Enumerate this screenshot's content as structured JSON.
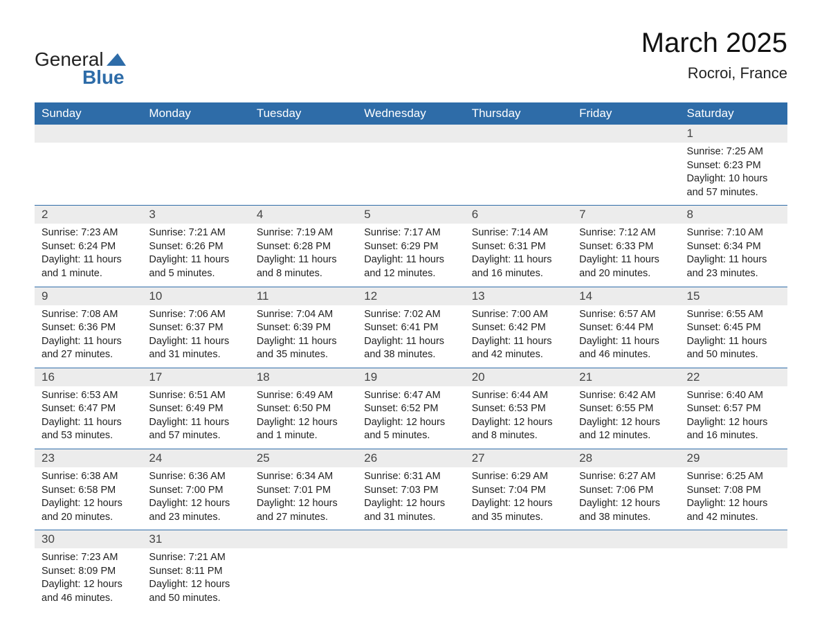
{
  "logo": {
    "text_main": "General",
    "text_sub": "Blue"
  },
  "header": {
    "month_title": "March 2025",
    "location": "Rocroi, France"
  },
  "colors": {
    "header_bg": "#2e6ca8",
    "header_fg": "#ffffff",
    "daynum_bg": "#ececec",
    "row_divider": "#2e6ca8",
    "text": "#222222",
    "page_bg": "#ffffff"
  },
  "calendar": {
    "weekdays": [
      "Sunday",
      "Monday",
      "Tuesday",
      "Wednesday",
      "Thursday",
      "Friday",
      "Saturday"
    ],
    "weeks": [
      [
        null,
        null,
        null,
        null,
        null,
        null,
        {
          "n": "1",
          "sunrise": "Sunrise: 7:25 AM",
          "sunset": "Sunset: 6:23 PM",
          "day1": "Daylight: 10 hours",
          "day2": "and 57 minutes."
        }
      ],
      [
        {
          "n": "2",
          "sunrise": "Sunrise: 7:23 AM",
          "sunset": "Sunset: 6:24 PM",
          "day1": "Daylight: 11 hours",
          "day2": "and 1 minute."
        },
        {
          "n": "3",
          "sunrise": "Sunrise: 7:21 AM",
          "sunset": "Sunset: 6:26 PM",
          "day1": "Daylight: 11 hours",
          "day2": "and 5 minutes."
        },
        {
          "n": "4",
          "sunrise": "Sunrise: 7:19 AM",
          "sunset": "Sunset: 6:28 PM",
          "day1": "Daylight: 11 hours",
          "day2": "and 8 minutes."
        },
        {
          "n": "5",
          "sunrise": "Sunrise: 7:17 AM",
          "sunset": "Sunset: 6:29 PM",
          "day1": "Daylight: 11 hours",
          "day2": "and 12 minutes."
        },
        {
          "n": "6",
          "sunrise": "Sunrise: 7:14 AM",
          "sunset": "Sunset: 6:31 PM",
          "day1": "Daylight: 11 hours",
          "day2": "and 16 minutes."
        },
        {
          "n": "7",
          "sunrise": "Sunrise: 7:12 AM",
          "sunset": "Sunset: 6:33 PM",
          "day1": "Daylight: 11 hours",
          "day2": "and 20 minutes."
        },
        {
          "n": "8",
          "sunrise": "Sunrise: 7:10 AM",
          "sunset": "Sunset: 6:34 PM",
          "day1": "Daylight: 11 hours",
          "day2": "and 23 minutes."
        }
      ],
      [
        {
          "n": "9",
          "sunrise": "Sunrise: 7:08 AM",
          "sunset": "Sunset: 6:36 PM",
          "day1": "Daylight: 11 hours",
          "day2": "and 27 minutes."
        },
        {
          "n": "10",
          "sunrise": "Sunrise: 7:06 AM",
          "sunset": "Sunset: 6:37 PM",
          "day1": "Daylight: 11 hours",
          "day2": "and 31 minutes."
        },
        {
          "n": "11",
          "sunrise": "Sunrise: 7:04 AM",
          "sunset": "Sunset: 6:39 PM",
          "day1": "Daylight: 11 hours",
          "day2": "and 35 minutes."
        },
        {
          "n": "12",
          "sunrise": "Sunrise: 7:02 AM",
          "sunset": "Sunset: 6:41 PM",
          "day1": "Daylight: 11 hours",
          "day2": "and 38 minutes."
        },
        {
          "n": "13",
          "sunrise": "Sunrise: 7:00 AM",
          "sunset": "Sunset: 6:42 PM",
          "day1": "Daylight: 11 hours",
          "day2": "and 42 minutes."
        },
        {
          "n": "14",
          "sunrise": "Sunrise: 6:57 AM",
          "sunset": "Sunset: 6:44 PM",
          "day1": "Daylight: 11 hours",
          "day2": "and 46 minutes."
        },
        {
          "n": "15",
          "sunrise": "Sunrise: 6:55 AM",
          "sunset": "Sunset: 6:45 PM",
          "day1": "Daylight: 11 hours",
          "day2": "and 50 minutes."
        }
      ],
      [
        {
          "n": "16",
          "sunrise": "Sunrise: 6:53 AM",
          "sunset": "Sunset: 6:47 PM",
          "day1": "Daylight: 11 hours",
          "day2": "and 53 minutes."
        },
        {
          "n": "17",
          "sunrise": "Sunrise: 6:51 AM",
          "sunset": "Sunset: 6:49 PM",
          "day1": "Daylight: 11 hours",
          "day2": "and 57 minutes."
        },
        {
          "n": "18",
          "sunrise": "Sunrise: 6:49 AM",
          "sunset": "Sunset: 6:50 PM",
          "day1": "Daylight: 12 hours",
          "day2": "and 1 minute."
        },
        {
          "n": "19",
          "sunrise": "Sunrise: 6:47 AM",
          "sunset": "Sunset: 6:52 PM",
          "day1": "Daylight: 12 hours",
          "day2": "and 5 minutes."
        },
        {
          "n": "20",
          "sunrise": "Sunrise: 6:44 AM",
          "sunset": "Sunset: 6:53 PM",
          "day1": "Daylight: 12 hours",
          "day2": "and 8 minutes."
        },
        {
          "n": "21",
          "sunrise": "Sunrise: 6:42 AM",
          "sunset": "Sunset: 6:55 PM",
          "day1": "Daylight: 12 hours",
          "day2": "and 12 minutes."
        },
        {
          "n": "22",
          "sunrise": "Sunrise: 6:40 AM",
          "sunset": "Sunset: 6:57 PM",
          "day1": "Daylight: 12 hours",
          "day2": "and 16 minutes."
        }
      ],
      [
        {
          "n": "23",
          "sunrise": "Sunrise: 6:38 AM",
          "sunset": "Sunset: 6:58 PM",
          "day1": "Daylight: 12 hours",
          "day2": "and 20 minutes."
        },
        {
          "n": "24",
          "sunrise": "Sunrise: 6:36 AM",
          "sunset": "Sunset: 7:00 PM",
          "day1": "Daylight: 12 hours",
          "day2": "and 23 minutes."
        },
        {
          "n": "25",
          "sunrise": "Sunrise: 6:34 AM",
          "sunset": "Sunset: 7:01 PM",
          "day1": "Daylight: 12 hours",
          "day2": "and 27 minutes."
        },
        {
          "n": "26",
          "sunrise": "Sunrise: 6:31 AM",
          "sunset": "Sunset: 7:03 PM",
          "day1": "Daylight: 12 hours",
          "day2": "and 31 minutes."
        },
        {
          "n": "27",
          "sunrise": "Sunrise: 6:29 AM",
          "sunset": "Sunset: 7:04 PM",
          "day1": "Daylight: 12 hours",
          "day2": "and 35 minutes."
        },
        {
          "n": "28",
          "sunrise": "Sunrise: 6:27 AM",
          "sunset": "Sunset: 7:06 PM",
          "day1": "Daylight: 12 hours",
          "day2": "and 38 minutes."
        },
        {
          "n": "29",
          "sunrise": "Sunrise: 6:25 AM",
          "sunset": "Sunset: 7:08 PM",
          "day1": "Daylight: 12 hours",
          "day2": "and 42 minutes."
        }
      ],
      [
        {
          "n": "30",
          "sunrise": "Sunrise: 7:23 AM",
          "sunset": "Sunset: 8:09 PM",
          "day1": "Daylight: 12 hours",
          "day2": "and 46 minutes."
        },
        {
          "n": "31",
          "sunrise": "Sunrise: 7:21 AM",
          "sunset": "Sunset: 8:11 PM",
          "day1": "Daylight: 12 hours",
          "day2": "and 50 minutes."
        },
        null,
        null,
        null,
        null,
        null
      ]
    ]
  }
}
